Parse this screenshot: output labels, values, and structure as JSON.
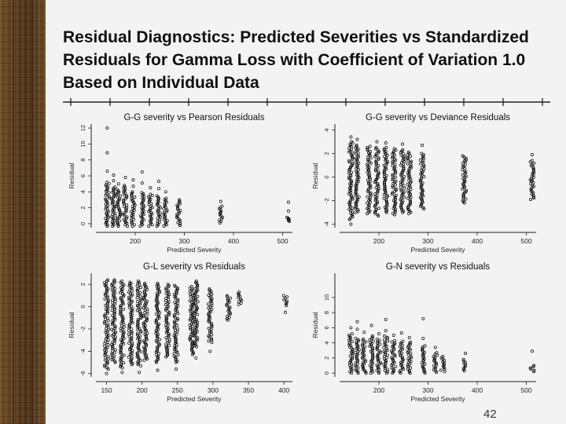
{
  "slide": {
    "title": "Residual Diagnostics: Predicted Severities vs Standardized Residuals for Gamma Loss with Coefficient of Variation 1.0 Based on Individual Data",
    "page_number": "42"
  },
  "chart_data": [
    {
      "type": "scatter",
      "title": "G-G severity vs Pearson Residuals",
      "xlabel": "Predicted Severity",
      "ylabel": "Residual",
      "xlim": [
        120,
        520
      ],
      "ylim": [
        -0.5,
        12.5
      ],
      "xticks": [
        200,
        300,
        400,
        500
      ],
      "yticks": [
        0,
        2,
        4,
        6,
        8,
        10,
        12
      ],
      "clusters": [
        {
          "x": 143,
          "ymin": -0.3,
          "ymax": 5.2,
          "extra": [
            6.6,
            8.9,
            12.0
          ]
        },
        {
          "x": 156,
          "ymin": -0.3,
          "ymax": 4.6,
          "extra": [
            5.4,
            6.1
          ]
        },
        {
          "x": 166,
          "ymin": -0.3,
          "ymax": 4.3,
          "extra": [
            5.0
          ]
        },
        {
          "x": 180,
          "ymin": -0.3,
          "ymax": 4.8,
          "extra": [
            5.8
          ]
        },
        {
          "x": 196,
          "ymin": -0.3,
          "ymax": 4.0,
          "extra": [
            4.7,
            5.5
          ]
        },
        {
          "x": 214,
          "ymin": -0.3,
          "ymax": 3.9,
          "extra": [
            5.1,
            6.5
          ]
        },
        {
          "x": 231,
          "ymin": -0.3,
          "ymax": 3.7,
          "extra": [
            4.5
          ]
        },
        {
          "x": 248,
          "ymin": -0.3,
          "ymax": 3.5,
          "extra": [
            4.4,
            5.3
          ]
        },
        {
          "x": 262,
          "ymin": -0.3,
          "ymax": 3.2,
          "extra": [
            4.0
          ]
        },
        {
          "x": 288,
          "ymin": -0.2,
          "ymax": 3.0,
          "extra": []
        },
        {
          "x": 374,
          "ymin": 0.1,
          "ymax": 2.2,
          "extra": [
            2.8
          ]
        },
        {
          "x": 512,
          "ymin": 0.3,
          "ymax": 0.8,
          "extra": [
            1.6,
            2.7
          ]
        }
      ]
    },
    {
      "type": "scatter",
      "title": "G-G severity vs Deviance Residuals",
      "xlabel": "Predicted Severity",
      "ylabel": "Residual",
      "xlim": [
        120,
        520
      ],
      "ylim": [
        -4.3,
        4.5
      ],
      "xticks": [
        200,
        300,
        400,
        500
      ],
      "yticks": [
        -4,
        -2,
        0,
        2,
        4
      ],
      "clusters": [
        {
          "x": 143,
          "ymin": -3.6,
          "ymax": 3.0,
          "extra": [
            -4.0,
            3.4
          ]
        },
        {
          "x": 156,
          "ymin": -3.0,
          "ymax": 2.7,
          "extra": [
            3.2
          ]
        },
        {
          "x": 180,
          "ymin": -3.1,
          "ymax": 2.6,
          "extra": []
        },
        {
          "x": 196,
          "ymin": -3.3,
          "ymax": 2.5,
          "extra": [
            3.0
          ]
        },
        {
          "x": 214,
          "ymin": -3.0,
          "ymax": 2.5,
          "extra": [
            2.9
          ]
        },
        {
          "x": 231,
          "ymin": -3.2,
          "ymax": 2.4,
          "extra": []
        },
        {
          "x": 248,
          "ymin": -3.0,
          "ymax": 2.3,
          "extra": [
            2.8
          ]
        },
        {
          "x": 262,
          "ymin": -3.1,
          "ymax": 2.1,
          "extra": []
        },
        {
          "x": 288,
          "ymin": -2.7,
          "ymax": 2.0,
          "extra": [
            2.7
          ]
        },
        {
          "x": 374,
          "ymin": -2.2,
          "ymax": 1.8,
          "extra": []
        },
        {
          "x": 512,
          "ymin": -1.9,
          "ymax": 1.4,
          "extra": [
            -0.3,
            1.9
          ]
        }
      ]
    },
    {
      "type": "scatter",
      "title": "G-L severity vs Residuals",
      "xlabel": "Predicted Severity",
      "ylabel": "Residual",
      "xlim": [
        135,
        412
      ],
      "ylim": [
        -6.3,
        3.0
      ],
      "xticks": [
        150,
        200,
        250,
        300,
        350,
        400
      ],
      "yticks": [
        -6,
        -4,
        -2,
        0,
        2
      ],
      "clusters": [
        {
          "x": 150,
          "ymin": -5.6,
          "ymax": 2.4,
          "extra": [
            -6.0
          ]
        },
        {
          "x": 160,
          "ymin": -5.0,
          "ymax": 2.4,
          "extra": []
        },
        {
          "x": 172,
          "ymin": -5.5,
          "ymax": 2.3,
          "extra": [
            -5.9
          ]
        },
        {
          "x": 184,
          "ymin": -5.2,
          "ymax": 2.2,
          "extra": []
        },
        {
          "x": 196,
          "ymin": -5.3,
          "ymax": 2.3,
          "extra": [
            -5.9
          ]
        },
        {
          "x": 205,
          "ymin": -4.8,
          "ymax": 2.1,
          "extra": []
        },
        {
          "x": 222,
          "ymin": -5.0,
          "ymax": 2.1,
          "extra": [
            -5.7
          ]
        },
        {
          "x": 236,
          "ymin": -4.5,
          "ymax": 2.0,
          "extra": []
        },
        {
          "x": 248,
          "ymin": -5.0,
          "ymax": 1.9,
          "extra": [
            -5.6
          ]
        },
        {
          "x": 270,
          "ymin": -4.3,
          "ymax": 1.8,
          "extra": []
        },
        {
          "x": 276,
          "ymin": -3.6,
          "ymax": 2.3,
          "extra": [
            -4.6
          ]
        },
        {
          "x": 296,
          "ymin": -3.2,
          "ymax": 1.6,
          "extra": [
            -4.0
          ]
        },
        {
          "x": 322,
          "ymin": -1.2,
          "ymax": 1.0,
          "extra": []
        },
        {
          "x": 338,
          "ymin": 0.2,
          "ymax": 1.3,
          "extra": []
        },
        {
          "x": 402,
          "ymin": 0.1,
          "ymax": 1.0,
          "extra": [
            -0.5
          ]
        }
      ]
    },
    {
      "type": "scatter",
      "title": "G-N severity vs Residuals",
      "xlabel": "Predicted Severity",
      "ylabel": "Residual",
      "xlim": [
        120,
        520
      ],
      "ylim": [
        -0.5,
        13.2
      ],
      "xticks": [
        200,
        300,
        400,
        500
      ],
      "yticks": [
        0,
        2,
        4,
        6,
        8,
        10
      ],
      "clusters": [
        {
          "x": 143,
          "ymin": 0.0,
          "ymax": 5.2,
          "extra": [
            6.0
          ]
        },
        {
          "x": 156,
          "ymin": 0.0,
          "ymax": 4.6,
          "extra": [
            5.8,
            6.8
          ]
        },
        {
          "x": 170,
          "ymin": 0.0,
          "ymax": 4.5,
          "extra": [
            5.4
          ]
        },
        {
          "x": 185,
          "ymin": 0.0,
          "ymax": 4.9,
          "extra": [
            6.3
          ]
        },
        {
          "x": 200,
          "ymin": 0.0,
          "ymax": 4.5,
          "extra": [
            5.2
          ]
        },
        {
          "x": 214,
          "ymin": 0.0,
          "ymax": 4.9,
          "extra": [
            5.6,
            7.1
          ]
        },
        {
          "x": 230,
          "ymin": 0.0,
          "ymax": 4.3,
          "extra": [
            5.0
          ]
        },
        {
          "x": 246,
          "ymin": 0.0,
          "ymax": 4.2,
          "extra": [
            5.3
          ]
        },
        {
          "x": 262,
          "ymin": 0.0,
          "ymax": 4.1,
          "extra": [
            4.7
          ]
        },
        {
          "x": 290,
          "ymin": 0.0,
          "ymax": 3.6,
          "extra": [
            4.6,
            7.2
          ]
        },
        {
          "x": 315,
          "ymin": 0.1,
          "ymax": 2.7,
          "extra": [
            3.4
          ]
        },
        {
          "x": 330,
          "ymin": 0.2,
          "ymax": 2.2,
          "extra": []
        },
        {
          "x": 376,
          "ymin": 0.3,
          "ymax": 1.8,
          "extra": [
            2.6
          ]
        },
        {
          "x": 512,
          "ymin": 0.2,
          "ymax": 1.0,
          "extra": [
            2.9
          ]
        }
      ]
    }
  ]
}
